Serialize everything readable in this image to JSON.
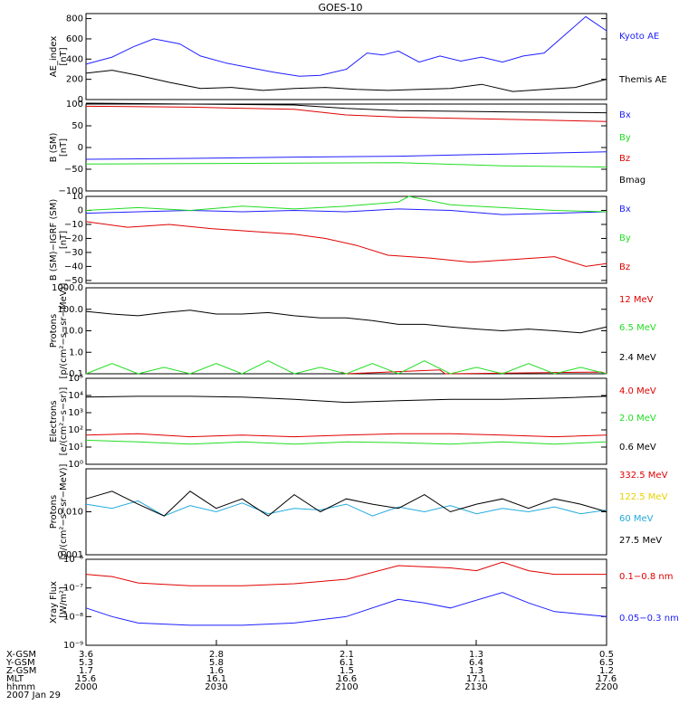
{
  "title": "GOES-10",
  "colors": {
    "black": "#000000",
    "blue": "#1f1fff",
    "red": "#e00000",
    "green": "#22dd22",
    "yellow": "#e6d200",
    "cyan": "#22aadd"
  },
  "chart_data": [
    {
      "id": "ae",
      "type": "line",
      "ylabel": [
        "AE_index",
        "[nT]"
      ],
      "ylim": [
        0,
        850
      ],
      "yticks": [
        0,
        200,
        400,
        600,
        800
      ],
      "ytick_labels": [
        "0",
        "200",
        "400",
        "600",
        "800"
      ],
      "series": [
        {
          "name": "Kyoto AE",
          "color": "blue",
          "x": [
            0,
            0.05,
            0.09,
            0.13,
            0.18,
            0.22,
            0.27,
            0.32,
            0.36,
            0.41,
            0.45,
            0.5,
            0.54,
            0.57,
            0.6,
            0.64,
            0.68,
            0.72,
            0.76,
            0.8,
            0.84,
            0.88,
            0.92,
            0.96,
            1.0
          ],
          "y": [
            350,
            420,
            520,
            600,
            550,
            430,
            360,
            310,
            270,
            230,
            240,
            300,
            460,
            440,
            480,
            370,
            430,
            380,
            420,
            370,
            430,
            460,
            640,
            820,
            680
          ]
        },
        {
          "name": "Themis AE",
          "color": "black",
          "x": [
            0,
            0.05,
            0.1,
            0.16,
            0.22,
            0.28,
            0.34,
            0.4,
            0.46,
            0.52,
            0.58,
            0.64,
            0.7,
            0.76,
            0.82,
            0.88,
            0.94,
            1.0
          ],
          "y": [
            260,
            290,
            240,
            170,
            110,
            120,
            90,
            110,
            120,
            100,
            90,
            100,
            110,
            150,
            80,
            100,
            120,
            200
          ]
        }
      ]
    },
    {
      "id": "bsm",
      "type": "line",
      "ylabel": [
        "B (SM)",
        "[nT]"
      ],
      "ylim": [
        -100,
        100
      ],
      "yticks": [
        -100,
        -50,
        0,
        50,
        100
      ],
      "ytick_labels": [
        "−100",
        "−50",
        "0",
        "50",
        "100"
      ],
      "series": [
        {
          "name": "Bx",
          "color": "blue",
          "x": [
            0,
            0.2,
            0.4,
            0.6,
            0.8,
            1.0
          ],
          "y": [
            -27,
            -25,
            -22,
            -20,
            -15,
            -10
          ]
        },
        {
          "name": "By",
          "color": "green",
          "x": [
            0,
            0.2,
            0.4,
            0.6,
            0.8,
            1.0
          ],
          "y": [
            -38,
            -37,
            -36,
            -35,
            -42,
            -45
          ]
        },
        {
          "name": "Bz",
          "color": "red",
          "x": [
            0,
            0.2,
            0.4,
            0.5,
            0.6,
            0.8,
            1.0
          ],
          "y": [
            95,
            93,
            88,
            75,
            70,
            65,
            60
          ]
        },
        {
          "name": "Bmag",
          "color": "black",
          "x": [
            0,
            0.2,
            0.4,
            0.5,
            0.6,
            0.8,
            1.0
          ],
          "y": [
            102,
            100,
            98,
            90,
            85,
            82,
            80
          ]
        }
      ]
    },
    {
      "id": "bigrf",
      "type": "line",
      "ylabel": [
        "B (SM)−IGRF (SM)",
        "[nT]"
      ],
      "ylim": [
        -52,
        10
      ],
      "yticks": [
        -50,
        -40,
        -30,
        -20,
        -10,
        0,
        10
      ],
      "ytick_labels": [
        "−50",
        "−40",
        "−30",
        "−20",
        "−10",
        "0",
        "10"
      ],
      "series": [
        {
          "name": "Bx",
          "color": "blue",
          "x": [
            0,
            0.1,
            0.2,
            0.3,
            0.4,
            0.5,
            0.6,
            0.7,
            0.8,
            0.9,
            1.0
          ],
          "y": [
            -2,
            -1,
            0,
            -1,
            0,
            -1,
            1,
            0,
            -3,
            -2,
            -1
          ]
        },
        {
          "name": "By",
          "color": "green",
          "x": [
            0,
            0.1,
            0.2,
            0.3,
            0.4,
            0.5,
            0.6,
            0.62,
            0.7,
            0.8,
            0.9,
            1.0
          ],
          "y": [
            0,
            2,
            0,
            3,
            1,
            3,
            6,
            10,
            4,
            2,
            0,
            -1
          ]
        },
        {
          "name": "Bz",
          "color": "red",
          "x": [
            0,
            0.08,
            0.16,
            0.24,
            0.32,
            0.4,
            0.46,
            0.52,
            0.58,
            0.66,
            0.74,
            0.82,
            0.9,
            0.96,
            1.0
          ],
          "y": [
            -8,
            -12,
            -10,
            -13,
            -15,
            -17,
            -20,
            -25,
            -32,
            -34,
            -37,
            -35,
            -33,
            -40,
            -38
          ]
        }
      ]
    },
    {
      "id": "protons1",
      "type": "line",
      "scale": "log",
      "ylabel": [
        "Protons",
        "[p/(cm²−s−sr−MeV)]"
      ],
      "ylim": [
        0.1,
        1000
      ],
      "yticks": [
        0.1,
        1,
        10,
        100,
        1000
      ],
      "ytick_labels": [
        "0.1",
        "1.0",
        "10.0",
        "100.0",
        "1000.0"
      ],
      "series": [
        {
          "name": "12 MeV",
          "color": "red",
          "x": [
            0.49,
            0.5,
            0.68,
            0.69,
            0.99,
            1.0
          ],
          "y": [
            0.12,
            0.1,
            0.15,
            0.1,
            0.12,
            0.1
          ]
        },
        {
          "name": "6.5 MeV",
          "color": "green",
          "x": [
            0,
            0.05,
            0.1,
            0.15,
            0.2,
            0.25,
            0.3,
            0.35,
            0.4,
            0.45,
            0.5,
            0.55,
            0.6,
            0.65,
            0.7,
            0.75,
            0.8,
            0.85,
            0.9,
            0.95,
            1.0
          ],
          "y": [
            0.1,
            0.3,
            0.1,
            0.2,
            0.1,
            0.3,
            0.1,
            0.4,
            0.1,
            0.2,
            0.1,
            0.3,
            0.1,
            0.4,
            0.1,
            0.2,
            0.1,
            0.3,
            0.1,
            0.2,
            0.1
          ]
        },
        {
          "name": "2.4 MeV",
          "color": "black",
          "x": [
            0,
            0.05,
            0.1,
            0.15,
            0.2,
            0.25,
            0.3,
            0.35,
            0.4,
            0.45,
            0.5,
            0.55,
            0.6,
            0.65,
            0.7,
            0.75,
            0.8,
            0.85,
            0.9,
            0.95,
            1.0
          ],
          "y": [
            80,
            60,
            50,
            70,
            90,
            60,
            60,
            70,
            50,
            40,
            40,
            30,
            20,
            20,
            15,
            12,
            10,
            12,
            10,
            8,
            15
          ]
        }
      ]
    },
    {
      "id": "electrons",
      "type": "line",
      "scale": "log",
      "ylabel": [
        "Electrons",
        "[e/(cm²−s−sr)]"
      ],
      "ylim": [
        1,
        100000
      ],
      "yticks": [
        1,
        10,
        100,
        1000,
        10000,
        100000
      ],
      "ytick_labels": [
        "10⁰",
        "10¹",
        "10²",
        "10³",
        "10⁴",
        "10⁵"
      ],
      "series": [
        {
          "name": "4.0 MeV",
          "color": "red",
          "x": [
            0,
            0.1,
            0.2,
            0.3,
            0.4,
            0.5,
            0.6,
            0.7,
            0.8,
            0.9,
            1.0
          ],
          "y": [
            50,
            60,
            40,
            50,
            40,
            50,
            60,
            60,
            50,
            40,
            50
          ]
        },
        {
          "name": "2.0 MeV",
          "color": "green",
          "x": [
            0,
            0.1,
            0.2,
            0.3,
            0.4,
            0.5,
            0.6,
            0.7,
            0.8,
            0.9,
            1.0
          ],
          "y": [
            25,
            20,
            15,
            20,
            15,
            20,
            18,
            15,
            20,
            15,
            20
          ]
        },
        {
          "name": "0.6 MeV",
          "color": "black",
          "x": [
            0,
            0.1,
            0.2,
            0.3,
            0.4,
            0.5,
            0.6,
            0.7,
            0.8,
            0.9,
            1.0
          ],
          "y": [
            8000,
            9000,
            9000,
            8000,
            6000,
            4000,
            5000,
            6000,
            6000,
            7000,
            9000
          ]
        }
      ]
    },
    {
      "id": "protons2",
      "type": "line",
      "scale": "log",
      "ylabel": [
        "Protons",
        "[p/(cm²−s−sr−MeV)]"
      ],
      "ylim": [
        0.001,
        0.1
      ],
      "yticks": [
        0.001,
        0.01
      ],
      "ytick_labels": [
        "0.001",
        "0.010"
      ],
      "series": [
        {
          "name": "332.5 MeV",
          "color": "red",
          "x": [],
          "y": []
        },
        {
          "name": "122.5 MeV",
          "color": "yellow",
          "x": [],
          "y": []
        },
        {
          "name": "60 MeV",
          "color": "cyan",
          "x": [
            0,
            0.05,
            0.1,
            0.15,
            0.2,
            0.25,
            0.3,
            0.35,
            0.4,
            0.45,
            0.5,
            0.55,
            0.6,
            0.65,
            0.7,
            0.75,
            0.8,
            0.85,
            0.9,
            0.95,
            1.0
          ],
          "y": [
            0.015,
            0.012,
            0.018,
            0.008,
            0.014,
            0.01,
            0.016,
            0.009,
            0.012,
            0.011,
            0.015,
            0.008,
            0.013,
            0.01,
            0.014,
            0.009,
            0.012,
            0.01,
            0.013,
            0.009,
            0.011
          ]
        },
        {
          "name": "27.5 MeV",
          "color": "black",
          "x": [
            0,
            0.05,
            0.1,
            0.15,
            0.2,
            0.25,
            0.3,
            0.35,
            0.4,
            0.45,
            0.5,
            0.55,
            0.6,
            0.65,
            0.7,
            0.75,
            0.8,
            0.85,
            0.9,
            0.95,
            1.0
          ],
          "y": [
            0.02,
            0.03,
            0.015,
            0.008,
            0.03,
            0.012,
            0.02,
            0.008,
            0.025,
            0.01,
            0.02,
            0.015,
            0.012,
            0.025,
            0.01,
            0.015,
            0.02,
            0.012,
            0.02,
            0.015,
            0.01
          ]
        }
      ]
    },
    {
      "id": "xray",
      "type": "line",
      "scale": "log",
      "ylabel": [
        "Xray Flux",
        "[W/m²]"
      ],
      "ylim": [
        1e-09,
        1e-06
      ],
      "yticks": [
        1e-09,
        1e-08,
        1e-07,
        1e-06
      ],
      "ytick_labels": [
        "10⁻⁹",
        "10⁻⁸",
        "10⁻⁷",
        "10⁻⁶"
      ],
      "series": [
        {
          "name": "0.1−0.8 nm",
          "color": "red",
          "x": [
            0,
            0.05,
            0.1,
            0.2,
            0.3,
            0.4,
            0.5,
            0.6,
            0.7,
            0.75,
            0.8,
            0.85,
            0.9,
            1.0
          ],
          "y": [
            3e-07,
            2.5e-07,
            1.5e-07,
            1.2e-07,
            1.2e-07,
            1.4e-07,
            2e-07,
            6e-07,
            5e-07,
            4e-07,
            8e-07,
            4e-07,
            3e-07,
            3e-07
          ]
        },
        {
          "name": "0.05−0.3 nm",
          "color": "blue",
          "x": [
            0,
            0.05,
            0.1,
            0.2,
            0.3,
            0.4,
            0.5,
            0.6,
            0.65,
            0.7,
            0.8,
            0.85,
            0.9,
            1.0
          ],
          "y": [
            2e-08,
            1e-08,
            6e-09,
            5e-09,
            5e-09,
            6e-09,
            1e-08,
            4e-08,
            3e-08,
            2e-08,
            7e-08,
            3e-08,
            1.5e-08,
            1e-08
          ]
        }
      ]
    }
  ],
  "xaxis": {
    "time_ticks": [
      "2000",
      "2030",
      "2100",
      "2130",
      "2200"
    ],
    "row_labels": [
      "X-GSM",
      "Y-GSM",
      "Z-GSM",
      "MLT",
      "hhmm"
    ],
    "rows": {
      "X-GSM": [
        "3.6",
        "2.8",
        "2.1",
        "1.3",
        "0.5"
      ],
      "Y-GSM": [
        "5.3",
        "5.8",
        "6.1",
        "6.4",
        "6.5"
      ],
      "Z-GSM": [
        "1.7",
        "1.6",
        "1.5",
        "1.3",
        "1.2"
      ],
      "MLT": [
        "15.6",
        "16.1",
        "16.6",
        "17.1",
        "17.6"
      ],
      "hhmm": [
        "2000",
        "2030",
        "2100",
        "2130",
        "2200"
      ]
    },
    "date": "2007 Jan 29"
  }
}
